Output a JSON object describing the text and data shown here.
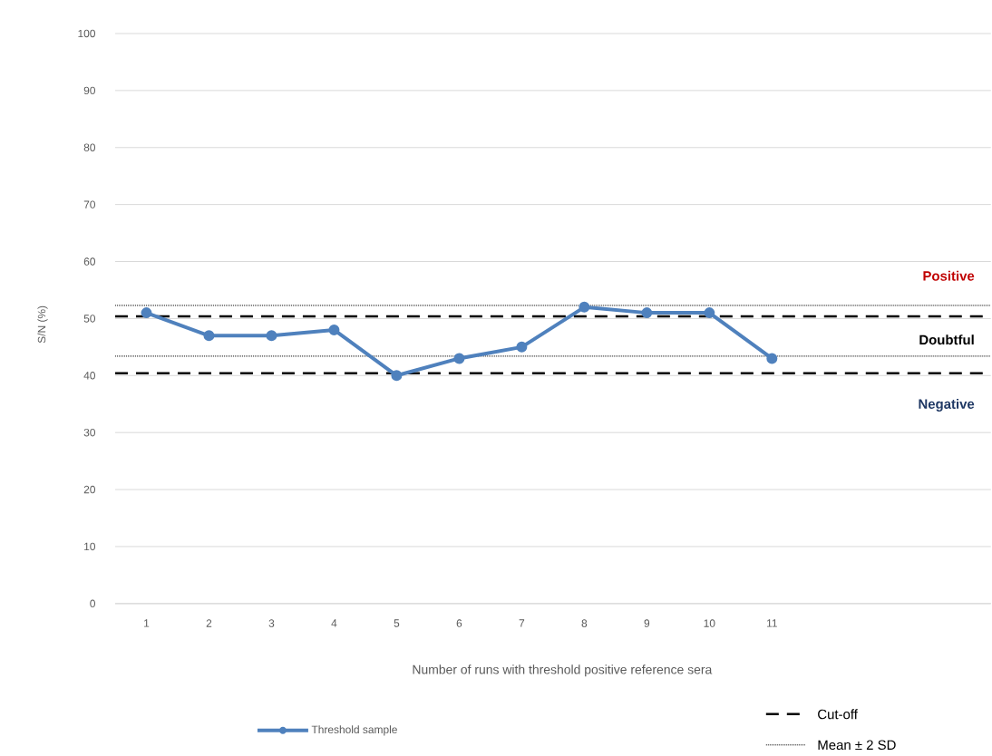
{
  "chart_data": {
    "type": "line",
    "xlabel": "Number of runs with threshold positive reference sera",
    "ylabel": "S/N (%)",
    "categories": [
      "1",
      "2",
      "3",
      "4",
      "5",
      "6",
      "7",
      "8",
      "9",
      "10",
      "11",
      null,
      null,
      null
    ],
    "series": [
      {
        "name": "Threshold sample",
        "color": "#4f81bd",
        "values": [
          51,
          47,
          47,
          48,
          40,
          43,
          45,
          52,
          51,
          51,
          43,
          null,
          null,
          null
        ]
      }
    ],
    "ylim": [
      0,
      100
    ],
    "yticks": [
      0,
      10,
      20,
      30,
      40,
      50,
      60,
      70,
      80,
      90,
      100
    ],
    "grid": "y",
    "marker": "circle",
    "line_style": "solid",
    "legend": "bottom",
    "ref_lines": [
      {
        "axis": "y",
        "value": 50.4,
        "label": "Cut-off",
        "color": "#000000",
        "line_style": "dashed"
      },
      {
        "axis": "y",
        "value": 40.4,
        "label": null,
        "color": "#000000",
        "line_style": "dashed"
      },
      {
        "axis": "y",
        "value": 52.3,
        "label": "Mean ± 2 SD",
        "color": "#000000",
        "line_style": "dotted"
      },
      {
        "axis": "y",
        "value": 43.4,
        "label": null,
        "color": "#000000",
        "line_style": "dotted"
      }
    ],
    "annotations": [
      "Positive",
      "Doubtful",
      "Negative"
    ]
  }
}
